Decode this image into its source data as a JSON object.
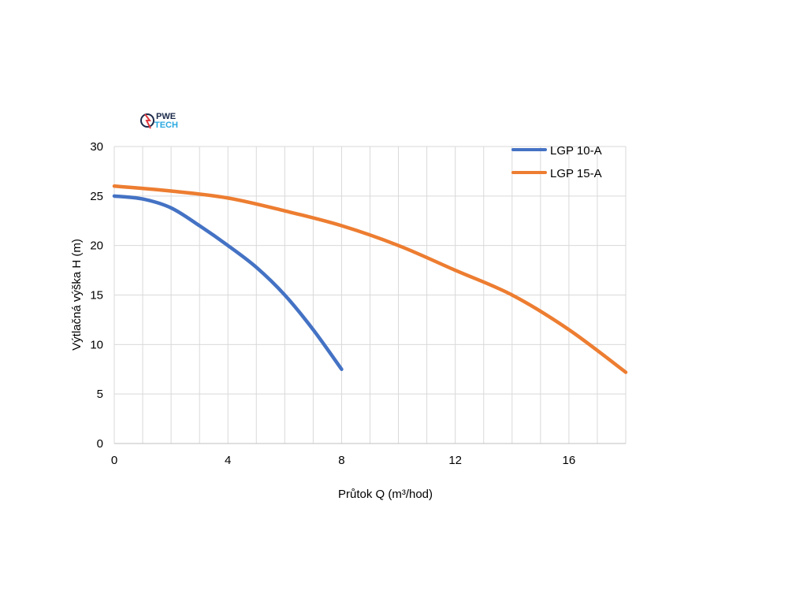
{
  "logo": {
    "line1": "PWE",
    "line2": "TECH",
    "colors": {
      "dark": "#1b2a4a",
      "accent": "#29a8e0",
      "red": "#e03a3e"
    }
  },
  "chart_data": {
    "type": "line",
    "title": "",
    "xlabel": "Průtok Q (m³/hod)",
    "ylabel": "Výtlačná výška H (m)",
    "xlim": [
      0,
      18
    ],
    "ylim": [
      0,
      30
    ],
    "x_ticks": [
      0,
      4,
      8,
      12,
      16
    ],
    "y_ticks": [
      0,
      5,
      10,
      15,
      20,
      25,
      30
    ],
    "x_minor_gridlines_every": 1,
    "grid": true,
    "legend_position": "top-right",
    "series": [
      {
        "name": "LGP 10-A",
        "color": "#4472c4",
        "x": [
          0,
          1,
          2,
          3,
          4,
          5,
          6,
          7,
          8
        ],
        "y": [
          25,
          24.7,
          23.8,
          22,
          20,
          17.8,
          15,
          11.5,
          7.5
        ]
      },
      {
        "name": "LGP 15-A",
        "color": "#ed7d31",
        "x": [
          0,
          2,
          4,
          6,
          8,
          10,
          12,
          14,
          16,
          18
        ],
        "y": [
          26,
          25.5,
          24.8,
          23.5,
          22,
          20,
          17.5,
          15,
          11.5,
          7.2
        ]
      }
    ]
  }
}
